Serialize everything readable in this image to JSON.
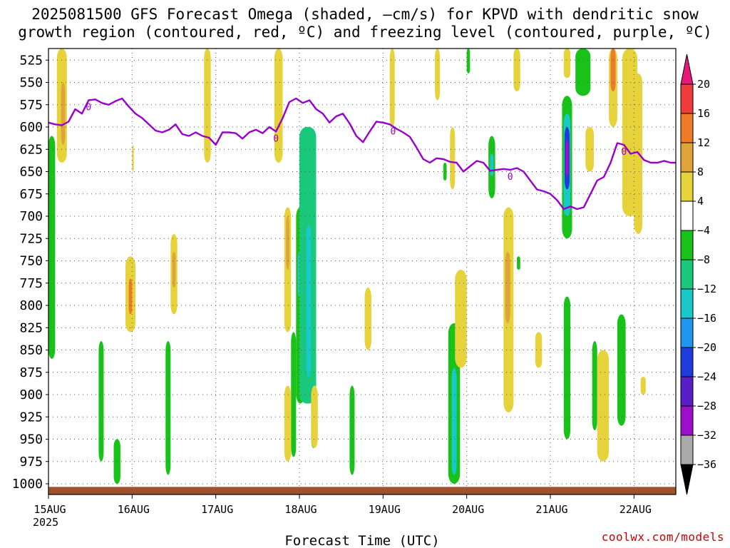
{
  "title": {
    "line1": "2025081500 GFS Forecast Omega (shaded, –cm/s) for KPVD with dendritic snow",
    "line2": "growth region (contoured, red, ºC) and freezing level (contoured, purple, ºC)"
  },
  "credit": "coolwx.com/models",
  "colors": {
    "freezing_level": "#9900cc",
    "ground": "#a0522d",
    "grid": "#555555"
  },
  "chart_data": {
    "type": "heatmap",
    "title": "2025081500 GFS Forecast Omega (shaded, –cm/s) for KPVD with dendritic snow growth region (contoured, red, ºC) and freezing level (contoured, purple, ºC)",
    "xlabel": "Forecast Time (UTC)",
    "ylabel": "",
    "xlim": [
      0,
      7.5
    ],
    "ylim": [
      1012,
      512
    ],
    "y_scale": "linear",
    "y_ticks": [
      525,
      550,
      575,
      600,
      625,
      650,
      675,
      700,
      725,
      750,
      775,
      800,
      825,
      850,
      875,
      900,
      925,
      950,
      975,
      1000
    ],
    "x_ticks": [
      {
        "x": 0,
        "label": "15AUG",
        "sublabel": "2025"
      },
      {
        "x": 1,
        "label": "16AUG",
        "sublabel": ""
      },
      {
        "x": 2,
        "label": "17AUG",
        "sublabel": ""
      },
      {
        "x": 3,
        "label": "18AUG",
        "sublabel": ""
      },
      {
        "x": 4,
        "label": "19AUG",
        "sublabel": ""
      },
      {
        "x": 5,
        "label": "20AUG",
        "sublabel": ""
      },
      {
        "x": 6,
        "label": "21AUG",
        "sublabel": ""
      },
      {
        "x": 7,
        "label": "22AUG",
        "sublabel": ""
      }
    ],
    "grid": true,
    "colorbar": {
      "labels": [
        "20",
        "16",
        "12",
        "8",
        "4",
        "−4",
        "−8",
        "−12",
        "−16",
        "−20",
        "−24",
        "−28",
        "−32",
        "−36"
      ],
      "bins": [
        {
          "from": 16,
          "to": 20,
          "color": "#f03c3c"
        },
        {
          "from": 12,
          "to": 16,
          "color": "#ee7a2a"
        },
        {
          "from": 8,
          "to": 12,
          "color": "#e0a53a"
        },
        {
          "from": 4,
          "to": 8,
          "color": "#e6d23a"
        },
        {
          "from": -4,
          "to": 4,
          "color": "#ffffff"
        },
        {
          "from": -8,
          "to": -4,
          "color": "#19c219"
        },
        {
          "from": -12,
          "to": -8,
          "color": "#19c87a"
        },
        {
          "from": -16,
          "to": -12,
          "color": "#19c8c8"
        },
        {
          "from": -20,
          "to": -16,
          "color": "#1e96f0"
        },
        {
          "from": -24,
          "to": -20,
          "color": "#1e3cdc"
        },
        {
          "from": -28,
          "to": -24,
          "color": "#5a1ec8"
        },
        {
          "from": -32,
          "to": -28,
          "color": "#9b10c8"
        },
        {
          "from": -36,
          "to": -32,
          "color": "#aaaaaa"
        }
      ],
      "top_arrow_color": "#e8187a",
      "bottom_arrow_color": "#000000"
    },
    "freezing_level": {
      "name": "freezing level",
      "label": "0",
      "x": [
        0,
        0.08,
        0.16,
        0.24,
        0.32,
        0.4,
        0.48,
        0.56,
        0.64,
        0.72,
        0.8,
        0.88,
        0.96,
        1.04,
        1.12,
        1.2,
        1.28,
        1.36,
        1.44,
        1.52,
        1.6,
        1.68,
        1.76,
        1.84,
        1.92,
        2.0,
        2.08,
        2.16,
        2.24,
        2.32,
        2.4,
        2.48,
        2.56,
        2.64,
        2.72,
        2.8,
        2.88,
        2.96,
        3.04,
        3.12,
        3.2,
        3.28,
        3.36,
        3.44,
        3.52,
        3.6,
        3.68,
        3.76,
        3.84,
        3.92,
        4.0,
        4.08,
        4.16,
        4.24,
        4.32,
        4.4,
        4.48,
        4.56,
        4.64,
        4.72,
        4.8,
        4.88,
        4.96,
        5.04,
        5.12,
        5.2,
        5.28,
        5.36,
        5.44,
        5.52,
        5.6,
        5.68,
        5.76,
        5.84,
        5.92,
        6.0,
        6.08,
        6.16,
        6.24,
        6.32,
        6.4,
        6.48,
        6.56,
        6.64,
        6.72,
        6.8,
        6.88,
        6.96,
        7.04,
        7.12,
        7.2,
        7.28,
        7.36,
        7.44,
        7.5
      ],
      "y": [
        595,
        597,
        598,
        594,
        580,
        585,
        570,
        569,
        573,
        575,
        571,
        568,
        577,
        585,
        590,
        597,
        604,
        606,
        603,
        597,
        608,
        610,
        606,
        610,
        612,
        620,
        606,
        606,
        607,
        613,
        606,
        603,
        607,
        600,
        605,
        590,
        572,
        568,
        573,
        570,
        580,
        585,
        595,
        588,
        585,
        596,
        610,
        617,
        605,
        594,
        595,
        597,
        602,
        606,
        611,
        623,
        636,
        640,
        635,
        636,
        639,
        640,
        650,
        644,
        638,
        640,
        649,
        648,
        647,
        648,
        646,
        650,
        660,
        670,
        672,
        675,
        682,
        692,
        689,
        692,
        690,
        675,
        660,
        656,
        640,
        618,
        620,
        630,
        628,
        637,
        640,
        640,
        638,
        640,
        640
      ]
    },
    "omega_features": [
      {
        "x0": 0.0,
        "x1": 0.08,
        "p0": 610,
        "p1": 860,
        "value": -6
      },
      {
        "x0": 0.1,
        "x1": 0.22,
        "p0": 512,
        "p1": 640,
        "value": 6
      },
      {
        "x0": 0.15,
        "x1": 0.2,
        "p0": 550,
        "p1": 620,
        "value": 10
      },
      {
        "x0": 0.6,
        "x1": 0.66,
        "p0": 840,
        "p1": 975,
        "value": -6
      },
      {
        "x0": 0.78,
        "x1": 0.86,
        "p0": 950,
        "p1": 1000,
        "value": -6
      },
      {
        "x0": 0.92,
        "x1": 1.04,
        "p0": 745,
        "p1": 830,
        "value": 6
      },
      {
        "x0": 0.96,
        "x1": 1.0,
        "p0": 770,
        "p1": 810,
        "value": 12
      },
      {
        "x0": 1.0,
        "x1": 1.02,
        "p0": 620,
        "p1": 650,
        "value": 5
      },
      {
        "x0": 1.4,
        "x1": 1.46,
        "p0": 840,
        "p1": 990,
        "value": -6
      },
      {
        "x0": 1.46,
        "x1": 1.54,
        "p0": 720,
        "p1": 810,
        "value": 6
      },
      {
        "x0": 1.48,
        "x1": 1.52,
        "p0": 740,
        "p1": 780,
        "value": 10
      },
      {
        "x0": 1.86,
        "x1": 1.94,
        "p0": 512,
        "p1": 640,
        "value": 5
      },
      {
        "x0": 2.7,
        "x1": 2.8,
        "p0": 512,
        "p1": 640,
        "value": 5
      },
      {
        "x0": 2.82,
        "x1": 2.9,
        "p0": 690,
        "p1": 830,
        "value": 6
      },
      {
        "x0": 2.84,
        "x1": 2.88,
        "p0": 700,
        "p1": 760,
        "value": 10
      },
      {
        "x0": 2.9,
        "x1": 2.96,
        "p0": 830,
        "p1": 970,
        "value": -6
      },
      {
        "x0": 2.96,
        "x1": 3.06,
        "p0": 690,
        "p1": 910,
        "value": -6
      },
      {
        "x0": 2.98,
        "x1": 3.02,
        "p0": 740,
        "p1": 790,
        "value": -16
      },
      {
        "x0": 3.0,
        "x1": 3.2,
        "p0": 600,
        "p1": 910,
        "value": -10
      },
      {
        "x0": 3.08,
        "x1": 3.14,
        "p0": 710,
        "p1": 880,
        "value": -14
      },
      {
        "x0": 3.14,
        "x1": 3.2,
        "p0": 900,
        "p1": 960,
        "value": -6
      },
      {
        "x0": 2.82,
        "x1": 2.9,
        "p0": 890,
        "p1": 975,
        "value": 5
      },
      {
        "x0": 3.14,
        "x1": 3.22,
        "p0": 890,
        "p1": 960,
        "value": 5
      },
      {
        "x0": 3.6,
        "x1": 3.66,
        "p0": 890,
        "p1": 990,
        "value": -6
      },
      {
        "x0": 3.78,
        "x1": 3.86,
        "p0": 780,
        "p1": 850,
        "value": 5
      },
      {
        "x0": 4.08,
        "x1": 4.14,
        "p0": 512,
        "p1": 600,
        "value": 5
      },
      {
        "x0": 4.62,
        "x1": 4.68,
        "p0": 512,
        "p1": 570,
        "value": 5
      },
      {
        "x0": 4.72,
        "x1": 4.76,
        "p0": 640,
        "p1": 660,
        "value": -6
      },
      {
        "x0": 4.8,
        "x1": 4.86,
        "p0": 600,
        "p1": 670,
        "value": 5
      },
      {
        "x0": 4.78,
        "x1": 4.92,
        "p0": 820,
        "p1": 1000,
        "value": -6
      },
      {
        "x0": 4.82,
        "x1": 4.88,
        "p0": 870,
        "p1": 990,
        "value": -14
      },
      {
        "x0": 4.86,
        "x1": 5.0,
        "p0": 760,
        "p1": 870,
        "value": 5
      },
      {
        "x0": 5.0,
        "x1": 5.04,
        "p0": 512,
        "p1": 540,
        "value": -6
      },
      {
        "x0": 5.26,
        "x1": 5.34,
        "p0": 610,
        "p1": 680,
        "value": -6
      },
      {
        "x0": 5.28,
        "x1": 5.32,
        "p0": 630,
        "p1": 655,
        "value": -14
      },
      {
        "x0": 5.44,
        "x1": 5.56,
        "p0": 690,
        "p1": 920,
        "value": 6
      },
      {
        "x0": 5.46,
        "x1": 5.52,
        "p0": 740,
        "p1": 820,
        "value": 10
      },
      {
        "x0": 5.56,
        "x1": 5.64,
        "p0": 512,
        "p1": 560,
        "value": 5
      },
      {
        "x0": 5.6,
        "x1": 5.64,
        "p0": 745,
        "p1": 760,
        "value": -6
      },
      {
        "x0": 5.82,
        "x1": 5.9,
        "p0": 830,
        "p1": 870,
        "value": 5
      },
      {
        "x0": 6.14,
        "x1": 6.26,
        "p0": 565,
        "p1": 725,
        "value": -6
      },
      {
        "x0": 6.16,
        "x1": 6.24,
        "p0": 585,
        "p1": 700,
        "value": -14
      },
      {
        "x0": 6.17,
        "x1": 6.23,
        "p0": 600,
        "p1": 670,
        "value": -24
      },
      {
        "x0": 6.18,
        "x1": 6.22,
        "p0": 615,
        "p1": 655,
        "value": -30
      },
      {
        "x0": 6.16,
        "x1": 6.24,
        "p0": 790,
        "p1": 950,
        "value": -6
      },
      {
        "x0": 6.16,
        "x1": 6.24,
        "p0": 512,
        "p1": 545,
        "value": 6
      },
      {
        "x0": 6.3,
        "x1": 6.48,
        "p0": 512,
        "p1": 565,
        "value": -6
      },
      {
        "x0": 6.42,
        "x1": 6.52,
        "p0": 600,
        "p1": 650,
        "value": 5
      },
      {
        "x0": 6.5,
        "x1": 6.56,
        "p0": 840,
        "p1": 940,
        "value": -6
      },
      {
        "x0": 6.56,
        "x1": 6.7,
        "p0": 850,
        "p1": 975,
        "value": 5
      },
      {
        "x0": 6.7,
        "x1": 6.8,
        "p0": 512,
        "p1": 600,
        "value": 6
      },
      {
        "x0": 6.72,
        "x1": 6.78,
        "p0": 512,
        "p1": 560,
        "value": 12
      },
      {
        "x0": 6.8,
        "x1": 6.9,
        "p0": 810,
        "p1": 935,
        "value": -6
      },
      {
        "x0": 6.86,
        "x1": 7.04,
        "p0": 512,
        "p1": 700,
        "value": 5
      },
      {
        "x0": 7.0,
        "x1": 7.1,
        "p0": 540,
        "p1": 720,
        "value": 5
      },
      {
        "x0": 7.08,
        "x1": 7.14,
        "p0": 880,
        "p1": 900,
        "value": 5
      }
    ]
  }
}
